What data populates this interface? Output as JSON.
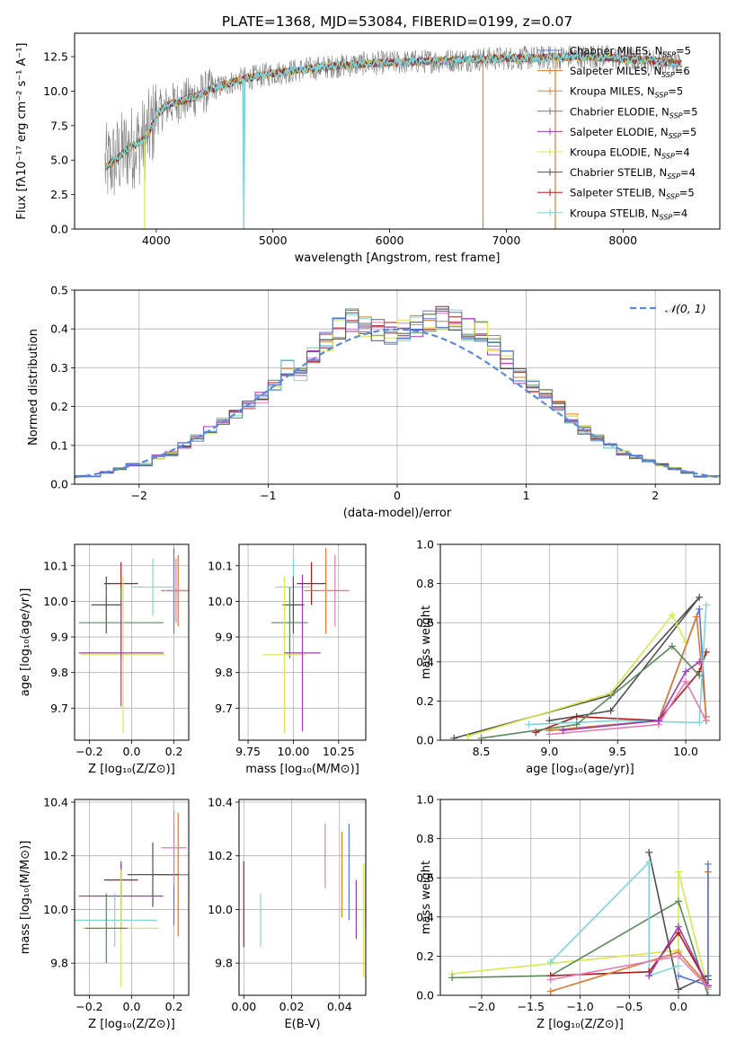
{
  "title": "PLATE=1368, MJD=53084, FIBERID=0199, z=0.07",
  "colors": {
    "Chabrier MILES": "#5577dd",
    "Salpeter MILES": "#e07a2c",
    "Kroupa MILES": "#d98a1a",
    "Chabrier ELODIE": "#5a8a5a",
    "Salpeter ELODIE": "#9b3cb8",
    "Kroupa ELODIE": "#d8e84a",
    "Chabrier STELIB": "#505050",
    "Salpeter STELIB": "#b01a1a",
    "Kroupa STELIB": "#7fd6d8",
    "pink": "#e879b4",
    "noise": "#808080",
    "normal": "#5b8bd6"
  },
  "chart_data": [
    {
      "type": "line",
      "name": "spectrum",
      "xlabel": "wavelength [Angstrom, rest frame]",
      "ylabel": "Flux [fλ10⁻¹⁷ erg cm⁻² s⁻¹ A⁻¹]",
      "xlim": [
        3300,
        8830
      ],
      "ylim": [
        0,
        14.2
      ],
      "xticks": [
        4000,
        5000,
        6000,
        7000,
        8000
      ],
      "yticks": [
        0.0,
        2.5,
        5.0,
        7.5,
        10.0,
        12.5
      ],
      "continuum_x": [
        3560,
        3650,
        3750,
        3900,
        3950,
        4000,
        4100,
        4300,
        4500,
        4700,
        5000,
        5200,
        5500,
        5800,
        6100,
        6400,
        6700,
        7000,
        7300,
        7500,
        7800,
        8100,
        8300,
        8500
      ],
      "continuum_y": [
        4.5,
        5.0,
        5.8,
        6.5,
        7.2,
        8.3,
        9.0,
        9.5,
        10.2,
        10.8,
        11.3,
        11.5,
        11.8,
        12.0,
        12.1,
        12.2,
        12.3,
        12.4,
        12.4,
        12.5,
        12.5,
        12.3,
        12.2,
        12.0
      ],
      "legend": [
        {
          "label": "Chabrier MILES, N",
          "sub": "SSP",
          "tail": "=5"
        },
        {
          "label": "Salpeter MILES, N",
          "sub": "SSP",
          "tail": "=6"
        },
        {
          "label": "Kroupa MILES, N",
          "sub": "SSP",
          "tail": "=5"
        },
        {
          "label": "Chabrier ELODIE, N",
          "sub": "SSP",
          "tail": "=5"
        },
        {
          "label": "Salpeter ELODIE, N",
          "sub": "SSP",
          "tail": "=5"
        },
        {
          "label": "Kroupa ELODIE, N",
          "sub": "SSP",
          "tail": "=4"
        },
        {
          "label": "Chabrier STELIB, N",
          "sub": "SSP",
          "tail": "=4"
        },
        {
          "label": "Salpeter STELIB, N",
          "sub": "SSP",
          "tail": "=5"
        },
        {
          "label": "Kroupa STELIB, N",
          "sub": "SSP",
          "tail": "=4"
        }
      ]
    },
    {
      "type": "bar",
      "name": "residual-histogram",
      "xlabel": "(data-model)/error",
      "ylabel": "Normed distribution",
      "xlim": [
        -2.5,
        2.5
      ],
      "ylim": [
        0,
        0.5
      ],
      "xticks": [
        -2,
        -1,
        0,
        1,
        2
      ],
      "yticks": [
        0.0,
        0.1,
        0.2,
        0.3,
        0.4,
        0.5
      ],
      "bin_edges_start": -2.5,
      "bin_width": 0.1,
      "values": [
        0.02,
        0.02,
        0.03,
        0.04,
        0.05,
        0.05,
        0.07,
        0.08,
        0.1,
        0.12,
        0.14,
        0.16,
        0.18,
        0.2,
        0.22,
        0.26,
        0.3,
        0.28,
        0.33,
        0.37,
        0.4,
        0.42,
        0.41,
        0.4,
        0.39,
        0.4,
        0.41,
        0.42,
        0.43,
        0.42,
        0.4,
        0.39,
        0.36,
        0.32,
        0.28,
        0.25,
        0.23,
        0.2,
        0.17,
        0.14,
        0.12,
        0.1,
        0.08,
        0.07,
        0.06,
        0.05,
        0.04,
        0.03,
        0.02,
        0.02
      ],
      "legend": [
        {
          "label": "𝒩(0, 1)"
        }
      ]
    },
    {
      "type": "scatter",
      "name": "Z-age",
      "xlabel": "Z [log₁₀(Z/Z⊙)]",
      "ylabel": "age  [log₁₀(age/yr)]",
      "xlim": [
        -0.27,
        0.27
      ],
      "ylim": [
        9.61,
        10.16
      ],
      "xticks": [
        -0.2,
        0.0,
        0.2
      ],
      "yticks": [
        9.7,
        9.8,
        9.9,
        10.0,
        10.1
      ],
      "points": [
        {
          "x": -0.05,
          "y": 10.05,
          "xerr": 0.08,
          "yerr": 0.06,
          "c": "Salpeter STELIB"
        },
        {
          "x": 0.2,
          "y": 10.03,
          "xerr": 0.06,
          "yerr": 0.12,
          "c": "Chabrier MILES"
        },
        {
          "x": 0.22,
          "y": 10.03,
          "xerr": 0.05,
          "yerr": 0.1,
          "c": "Salpeter MILES"
        },
        {
          "x": 0.1,
          "y": 10.04,
          "xerr": 0.1,
          "yerr": 0.08,
          "c": "Kroupa STELIB"
        },
        {
          "x": -0.12,
          "y": 9.99,
          "xerr": 0.07,
          "yerr": 0.08,
          "c": "Chabrier STELIB"
        },
        {
          "x": -0.05,
          "y": 9.94,
          "xerr": 0.2,
          "yerr": 0.1,
          "c": "Chabrier ELODIE"
        },
        {
          "x": -0.04,
          "y": 9.85,
          "xerr": 0.2,
          "yerr": 0.22,
          "c": "Kroupa ELODIE"
        },
        {
          "x": -0.05,
          "y": 9.855,
          "xerr": 0.2,
          "yerr": 0.15,
          "c": "Salpeter ELODIE"
        },
        {
          "x": 0.21,
          "y": 10.03,
          "xerr": 0.06,
          "yerr": 0.09,
          "c": "pink"
        }
      ]
    },
    {
      "type": "scatter",
      "name": "mass-age",
      "xlabel": "mass [log₁₀(M/M⊙)]",
      "ylabel": "",
      "xlim": [
        9.7,
        10.4
      ],
      "ylim": [
        9.61,
        10.16
      ],
      "xticks": [
        9.75,
        10.0,
        10.25
      ],
      "yticks": [
        9.7,
        9.8,
        9.9,
        10.0,
        10.1
      ],
      "points": [
        {
          "x": 10.1,
          "y": 10.05,
          "xerr": 0.08,
          "yerr": 0.06,
          "c": "Salpeter STELIB"
        },
        {
          "x": 10.18,
          "y": 10.03,
          "xerr": 0.12,
          "yerr": 0.12,
          "c": "Salpeter MILES"
        },
        {
          "x": 10.0,
          "y": 10.04,
          "xerr": 0.1,
          "yerr": 0.08,
          "c": "Kroupa STELIB"
        },
        {
          "x": 10.0,
          "y": 9.99,
          "xerr": 0.06,
          "yerr": 0.08,
          "c": "Chabrier STELIB"
        },
        {
          "x": 9.98,
          "y": 9.94,
          "xerr": 0.1,
          "yerr": 0.1,
          "c": "Chabrier ELODIE"
        },
        {
          "x": 9.95,
          "y": 9.85,
          "xerr": 0.12,
          "yerr": 0.22,
          "c": "Kroupa ELODIE"
        },
        {
          "x": 10.05,
          "y": 9.855,
          "xerr": 0.1,
          "yerr": 0.22,
          "c": "Salpeter ELODIE"
        },
        {
          "x": 10.23,
          "y": 10.03,
          "xerr": 0.08,
          "yerr": 0.1,
          "c": "pink"
        }
      ]
    },
    {
      "type": "line",
      "name": "age-weight",
      "xlabel": "age  [log₁₀(age/yr)]",
      "ylabel": "mass weight",
      "xlim": [
        8.2,
        10.25
      ],
      "ylim": [
        0,
        1.0
      ],
      "xticks": [
        8.5,
        9.0,
        9.5,
        10.0
      ],
      "yticks": [
        0.0,
        0.2,
        0.4,
        0.6,
        0.8,
        1.0
      ],
      "series": [
        {
          "c": "Chabrier STELIB",
          "x": [
            8.3,
            9.45,
            10.1,
            9.45,
            9.0
          ],
          "y": [
            0.01,
            0.23,
            0.73,
            0.15,
            0.1
          ]
        },
        {
          "c": "Kroupa ELODIE",
          "x": [
            8.4,
            9.45,
            9.9,
            10.0
          ],
          "y": [
            0.02,
            0.24,
            0.64,
            0.5
          ]
        },
        {
          "c": "Chabrier MILES",
          "x": [
            9.0,
            9.8,
            10.1,
            10.15
          ],
          "y": [
            0.05,
            0.1,
            0.67,
            0.1
          ]
        },
        {
          "c": "Salpeter MILES",
          "x": [
            9.0,
            9.8,
            10.08,
            10.15
          ],
          "y": [
            0.05,
            0.1,
            0.63,
            0.12
          ]
        },
        {
          "c": "Salpeter STELIB",
          "x": [
            8.9,
            9.2,
            9.8,
            10.1,
            10.15
          ],
          "y": [
            0.04,
            0.12,
            0.1,
            0.35,
            0.45
          ]
        },
        {
          "c": "Kroupa STELIB",
          "x": [
            8.85,
            9.5,
            10.1,
            10.15
          ],
          "y": [
            0.08,
            0.1,
            0.09,
            0.69
          ]
        },
        {
          "c": "pink",
          "x": [
            9.0,
            9.8,
            10.0,
            10.15
          ],
          "y": [
            0.03,
            0.08,
            0.3,
            0.1
          ]
        },
        {
          "c": "Salpeter ELODIE",
          "x": [
            9.1,
            9.8,
            10.0,
            10.1
          ],
          "y": [
            0.05,
            0.1,
            0.35,
            0.4
          ]
        },
        {
          "c": "Chabrier ELODIE",
          "x": [
            8.5,
            9.2,
            9.9,
            10.1
          ],
          "y": [
            0.01,
            0.08,
            0.48,
            0.33
          ]
        }
      ]
    },
    {
      "type": "scatter",
      "name": "Z-mass",
      "xlabel": "Z [log₁₀(Z/Z⊙)]",
      "ylabel": "mass [log₁₀(M/M⊙)]",
      "xlim": [
        -0.27,
        0.27
      ],
      "ylim": [
        9.68,
        10.41
      ],
      "xticks": [
        -0.2,
        0.0,
        0.2
      ],
      "yticks": [
        9.8,
        10.0,
        10.2,
        10.4
      ],
      "points": [
        {
          "x": -0.05,
          "y": 10.11,
          "xerr": 0.08,
          "yerr": 0.06,
          "c": "Salpeter STELIB"
        },
        {
          "x": 0.2,
          "y": 10.13,
          "xerr": 0.08,
          "yerr": 0.19,
          "c": "Chabrier MILES"
        },
        {
          "x": 0.22,
          "y": 10.13,
          "xerr": 0.1,
          "yerr": 0.23,
          "c": "Salpeter MILES"
        },
        {
          "x": 0.1,
          "y": 10.13,
          "xerr": 0.12,
          "yerr": 0.12,
          "c": "Chabrier STELIB"
        },
        {
          "x": 0.2,
          "y": 10.23,
          "xerr": 0.06,
          "yerr": 0.14,
          "c": "pink"
        },
        {
          "x": -0.05,
          "y": 10.05,
          "xerr": 0.2,
          "yerr": 0.13,
          "c": "Salpeter ELODIE"
        },
        {
          "x": -0.08,
          "y": 9.96,
          "xerr": 0.2,
          "yerr": 0.1,
          "c": "Kroupa STELIB"
        },
        {
          "x": -0.05,
          "y": 9.93,
          "xerr": 0.18,
          "yerr": 0.22,
          "c": "Kroupa ELODIE"
        },
        {
          "x": -0.12,
          "y": 9.93,
          "xerr": 0.1,
          "yerr": 0.13,
          "c": "Chabrier ELODIE"
        }
      ]
    },
    {
      "type": "scatter",
      "name": "EBV-mass",
      "xlabel": "E(B-V)",
      "ylabel": "",
      "xlim": [
        -0.002,
        0.051
      ],
      "ylim": [
        9.68,
        10.41
      ],
      "xticks": [
        0.0,
        0.02,
        0.04
      ],
      "yticks": [
        9.8,
        10.0,
        10.2,
        10.4
      ],
      "points": [
        {
          "x": 0.0,
          "y": 10.02,
          "xerr": 0,
          "yerr": 0.16,
          "c": "Salpeter STELIB"
        },
        {
          "x": 0.007,
          "y": 9.96,
          "xerr": 0,
          "yerr": 0.1,
          "c": "Kroupa STELIB"
        },
        {
          "x": 0.034,
          "y": 10.2,
          "xerr": 0,
          "yerr": 0.12,
          "c": "pink"
        },
        {
          "x": 0.041,
          "y": 10.13,
          "xerr": 0,
          "yerr": 0.16,
          "c": "Kroupa MILES"
        },
        {
          "x": 0.044,
          "y": 10.14,
          "xerr": 0,
          "yerr": 0.18,
          "c": "Chabrier MILES"
        },
        {
          "x": 0.047,
          "y": 10.0,
          "xerr": 0,
          "yerr": 0.11,
          "c": "Salpeter ELODIE"
        },
        {
          "x": 0.05,
          "y": 9.96,
          "xerr": 0,
          "yerr": 0.21,
          "c": "Kroupa ELODIE"
        },
        {
          "x": 0.051,
          "y": 10.05,
          "xerr": 0,
          "yerr": 0.12,
          "c": "Chabrier ELODIE"
        }
      ]
    },
    {
      "type": "line",
      "name": "Z-weight",
      "xlabel": "Z [log₁₀(Z/Z⊙)]",
      "ylabel": "mass weight",
      "xlim": [
        -2.42,
        0.42
      ],
      "ylim": [
        0,
        1.0
      ],
      "xticks": [
        -2.0,
        -1.5,
        -1.0,
        -0.5,
        0.0
      ],
      "yticks": [
        0.0,
        0.2,
        0.4,
        0.6,
        0.8,
        1.0
      ],
      "series": [
        {
          "c": "Kroupa ELODIE",
          "x": [
            -2.3,
            0.0,
            0.0,
            0.3
          ],
          "y": [
            0.11,
            0.23,
            0.63,
            0.03
          ]
        },
        {
          "c": "Chabrier ELODIE",
          "x": [
            -2.3,
            -1.3,
            0.0,
            0.3
          ],
          "y": [
            0.09,
            0.1,
            0.48,
            0.0
          ]
        },
        {
          "c": "Chabrier STELIB",
          "x": [
            -0.3,
            0.0,
            0.3,
            0.3
          ],
          "y": [
            0.73,
            0.03,
            0.1,
            0.08
          ]
        },
        {
          "c": "Kroupa STELIB",
          "x": [
            -1.3,
            -0.3,
            -0.3,
            0.0
          ],
          "y": [
            0.17,
            0.68,
            0.1,
            0.15
          ]
        },
        {
          "c": "Salpeter STELIB",
          "x": [
            -1.3,
            -0.3,
            0.0,
            0.3
          ],
          "y": [
            0.1,
            0.12,
            0.32,
            0.05
          ]
        },
        {
          "c": "Salpeter MILES",
          "x": [
            -1.3,
            0.0,
            0.3,
            0.3
          ],
          "y": [
            0.02,
            0.22,
            0.05,
            0.63
          ]
        },
        {
          "c": "Chabrier MILES",
          "x": [
            0.0,
            0.3,
            0.3
          ],
          "y": [
            0.1,
            0.05,
            0.67
          ]
        },
        {
          "c": "Salpeter ELODIE",
          "x": [
            -0.3,
            0.0,
            0.3
          ],
          "y": [
            0.1,
            0.35,
            0.05
          ]
        },
        {
          "c": "pink",
          "x": [
            -1.3,
            0.0,
            0.3
          ],
          "y": [
            0.08,
            0.2,
            0.04
          ]
        }
      ]
    }
  ]
}
